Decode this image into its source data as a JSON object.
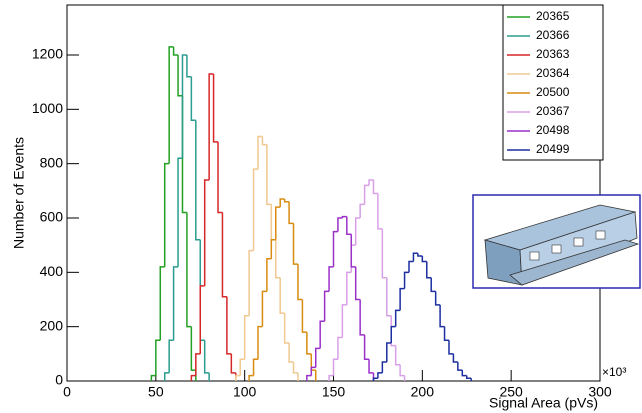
{
  "chart_data": {
    "type": "histogram",
    "y_label": "Number of Events",
    "x_label": "Signal Area (pVs)",
    "x_multiplier": "×10³",
    "xlim": [
      0,
      300
    ],
    "xticks": [
      0,
      50,
      100,
      150,
      200,
      250,
      300
    ],
    "ylim": [
      0,
      1384
    ],
    "yticks": [
      0,
      200,
      400,
      600,
      800,
      1000,
      1200
    ],
    "series": [
      {
        "name": "20365",
        "color": "#22a022",
        "bins": [
          47.5,
          50,
          52.5,
          55,
          57.5,
          60,
          62.5,
          65,
          67.5,
          70,
          72.5
        ],
        "values": [
          20,
          150,
          420,
          800,
          1230,
          1200,
          1050,
          620,
          200,
          40
        ]
      },
      {
        "name": "20366",
        "color": "#2a9d8f",
        "bins": [
          55,
          57.5,
          60,
          62.5,
          65,
          67.5,
          70,
          72.5,
          75,
          77.5,
          80
        ],
        "values": [
          30,
          150,
          420,
          820,
          1200,
          1120,
          960,
          520,
          150,
          30
        ]
      },
      {
        "name": "20363",
        "color": "#d62728",
        "bins": [
          70,
          72.5,
          75,
          77.5,
          80,
          82.5,
          85,
          87.5,
          90,
          92.5,
          95
        ],
        "values": [
          20,
          100,
          350,
          740,
          1130,
          880,
          620,
          310,
          100,
          30
        ]
      },
      {
        "name": "20364",
        "color": "#f0c890",
        "bins": [
          95,
          97.5,
          100,
          102.5,
          105,
          107.5,
          110,
          112.5,
          115,
          117.5,
          120,
          122.5,
          125,
          127.5,
          130
        ],
        "values": [
          20,
          80,
          240,
          480,
          780,
          900,
          870,
          650,
          520,
          380,
          250,
          140,
          70,
          30
        ]
      },
      {
        "name": "20500",
        "color": "#d98c10",
        "bins": [
          102.5,
          105,
          107.5,
          110,
          112.5,
          115,
          117.5,
          120,
          122.5,
          125,
          127.5,
          130,
          132.5,
          135,
          137.5,
          140
        ],
        "values": [
          20,
          80,
          200,
          330,
          450,
          520,
          640,
          670,
          660,
          580,
          430,
          300,
          180,
          100,
          40
        ]
      },
      {
        "name": "20367",
        "color": "#d9a0e8",
        "bins": [
          147.5,
          150,
          152.5,
          155,
          157.5,
          160,
          162.5,
          165,
          167.5,
          170,
          172.5,
          175,
          177.5,
          180,
          182.5,
          185,
          187.5,
          190
        ],
        "values": [
          20,
          80,
          160,
          280,
          400,
          500,
          600,
          650,
          720,
          740,
          690,
          560,
          380,
          240,
          130,
          60,
          20
        ]
      },
      {
        "name": "20498",
        "color": "#9b30c8",
        "bins": [
          135,
          137.5,
          140,
          142.5,
          145,
          147.5,
          150,
          152.5,
          155,
          157.5,
          160,
          162.5,
          165,
          167.5,
          170,
          172.5
        ],
        "values": [
          20,
          50,
          120,
          220,
          330,
          420,
          550,
          600,
          605,
          540,
          420,
          300,
          170,
          80,
          30
        ]
      },
      {
        "name": "20499",
        "color": "#1c2fa0",
        "bins": [
          172.5,
          175,
          177.5,
          180,
          182.5,
          185,
          187.5,
          190,
          192.5,
          195,
          197.5,
          200,
          202.5,
          205,
          207.5,
          210,
          212.5,
          215,
          217.5,
          220,
          222.5,
          225,
          227.5
        ],
        "values": [
          10,
          30,
          70,
          140,
          200,
          260,
          340,
          400,
          440,
          470,
          460,
          440,
          380,
          330,
          280,
          200,
          150,
          100,
          70,
          40,
          20,
          10
        ]
      }
    ]
  }
}
